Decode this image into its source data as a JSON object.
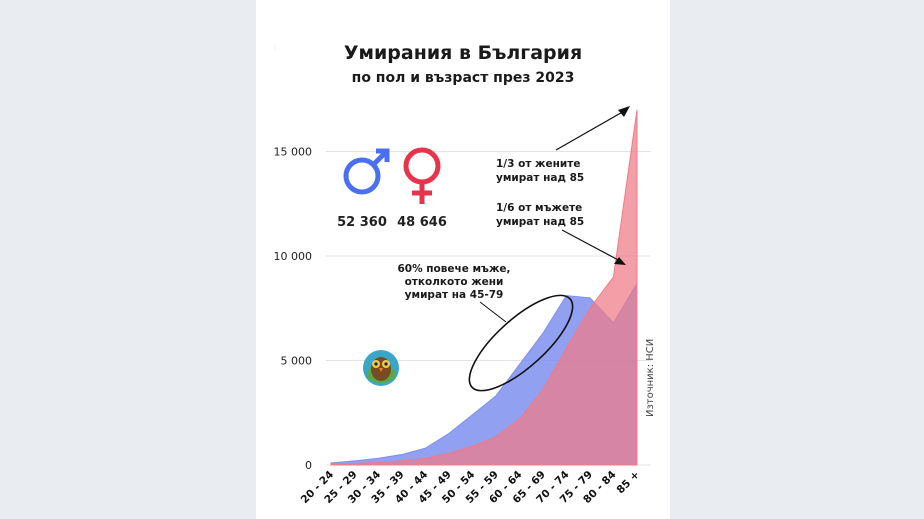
{
  "chart_data": {
    "type": "area",
    "title": "Умирания в България",
    "subtitle": "по пол и възраст през 2023",
    "categories": [
      "20 - 24",
      "25 - 29",
      "30 - 34",
      "35 - 39",
      "40 - 44",
      "45 - 49",
      "50 - 54",
      "55 - 59",
      "60 - 64",
      "65 - 69",
      "70 - 74",
      "75 - 79",
      "80 - 84",
      "85 +"
    ],
    "series": [
      {
        "name": "male",
        "values": [
          100,
          200,
          320,
          500,
          800,
          1500,
          2400,
          3300,
          4800,
          6300,
          8100,
          8000,
          6800,
          8700
        ],
        "color": "#7f8fef"
      },
      {
        "name": "female",
        "values": [
          40,
          70,
          120,
          200,
          320,
          560,
          900,
          1350,
          2200,
          3600,
          5600,
          7500,
          9000,
          17000
        ],
        "color": "#f07a86"
      }
    ],
    "ylim": [
      0,
      17500
    ],
    "yticks": [
      0,
      5000,
      10000,
      15000
    ],
    "ytick_labels": [
      "0",
      "5 000",
      "10 000",
      "15 000"
    ],
    "grid": true,
    "totals": {
      "male": "52 360",
      "female": "48 646"
    },
    "annotations": {
      "women_85": [
        "1/3 от жените",
        "умират над 85"
      ],
      "men_85": [
        "1/6 от мъжете",
        "умират над 85"
      ],
      "middle_age": [
        "60% повече мъже,",
        "отколкото жени",
        "умират на 45-79"
      ]
    },
    "source": "Източник: НСИ"
  },
  "colors": {
    "male_symbol": "#4a6ff0",
    "female_symbol": "#e8334a",
    "overlap": "#c65a86"
  }
}
